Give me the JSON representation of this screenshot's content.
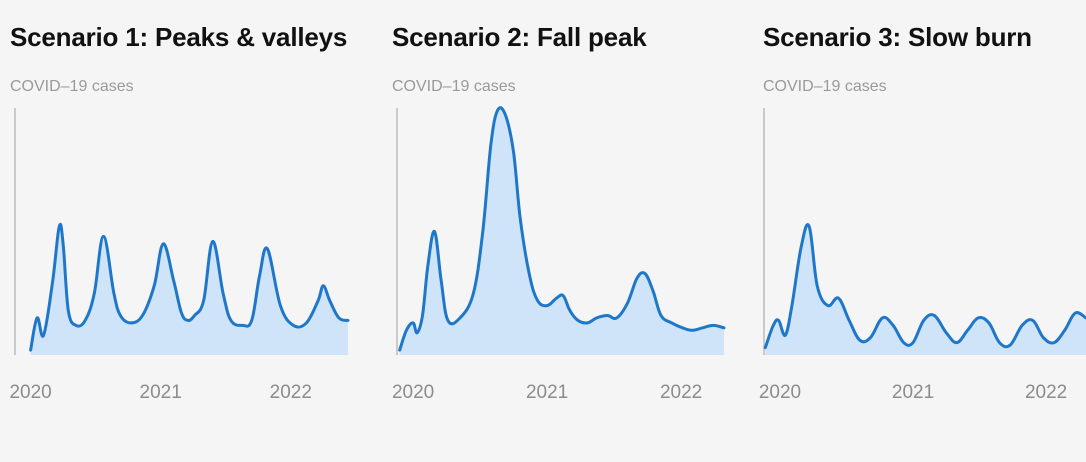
{
  "colors": {
    "background": "#f5f5f5",
    "line": "#1f77c9",
    "fill": "#cfe4f8",
    "axis": "#bbbbbb",
    "title": "#111111",
    "subtitle": "#9a9a9a",
    "tick": "#8c8c8c"
  },
  "chart_data": [
    {
      "type": "area",
      "title": "Scenario 1: Peaks & valleys",
      "ylabel": "COVID–19 cases",
      "xlabel": "",
      "x_ticks": [
        {
          "x": 2020.0,
          "label": "2020"
        },
        {
          "x": 2021.0,
          "label": "2021"
        },
        {
          "x": 2022.0,
          "label": "2022"
        }
      ],
      "xlim": [
        2020.0,
        2022.45
      ],
      "ylim": [
        0,
        100
      ],
      "grid": false,
      "x": [
        2020.0,
        2020.05,
        2020.1,
        2020.17,
        2020.22,
        2020.25,
        2020.29,
        2020.35,
        2020.42,
        2020.49,
        2020.56,
        2020.64,
        2020.69,
        2020.77,
        2020.86,
        2020.95,
        2021.02,
        2021.1,
        2021.16,
        2021.21,
        2021.26,
        2021.33,
        2021.4,
        2021.48,
        2021.54,
        2021.63,
        2021.7,
        2021.76,
        2021.82,
        2021.92,
        2022.02,
        2022.12,
        2022.21,
        2022.25,
        2022.3,
        2022.37,
        2022.44
      ],
      "values": [
        2,
        15,
        8,
        30,
        52,
        45,
        18,
        12,
        14,
        25,
        48,
        25,
        16,
        13,
        16,
        28,
        45,
        30,
        17,
        14,
        16,
        22,
        46,
        25,
        14,
        12,
        14,
        32,
        43,
        20,
        12,
        13,
        22,
        28,
        22,
        15,
        14
      ]
    },
    {
      "type": "area",
      "title": "Scenario 2: Fall peak",
      "ylabel": "COVID–19 cases",
      "xlabel": "",
      "x_ticks": [
        {
          "x": 2020.0,
          "label": "2020"
        },
        {
          "x": 2021.0,
          "label": "2021"
        },
        {
          "x": 2022.0,
          "label": "2022"
        }
      ],
      "xlim": [
        1999.86,
        2022.33
      ],
      "ylim": [
        0,
        100
      ],
      "grid": false,
      "x": [
        2019.9,
        2019.95,
        2020.0,
        2020.03,
        2020.07,
        2020.11,
        2020.16,
        2020.21,
        2020.26,
        2020.35,
        2020.45,
        2020.52,
        2020.58,
        2020.63,
        2020.69,
        2020.75,
        2020.8,
        2020.87,
        2020.93,
        2021.0,
        2021.07,
        2021.12,
        2021.17,
        2021.23,
        2021.3,
        2021.37,
        2021.45,
        2021.52,
        2021.6,
        2021.67,
        2021.73,
        2021.79,
        2021.85,
        2021.93,
        2022.01,
        2022.08,
        2022.16,
        2022.24,
        2022.32
      ],
      "values": [
        2,
        10,
        13,
        9,
        16,
        36,
        50,
        30,
        14,
        15,
        25,
        50,
        85,
        99,
        97,
        82,
        55,
        32,
        22,
        20,
        23,
        24,
        18,
        14,
        13,
        15,
        16,
        15,
        21,
        31,
        33,
        26,
        16,
        13,
        11,
        10,
        11,
        12,
        11
      ]
    },
    {
      "type": "area",
      "title": "Scenario 3: Slow burn",
      "ylabel": "COVID–19 cases",
      "xlabel": "",
      "x_ticks": [
        {
          "x": 2020.0,
          "label": "2020"
        },
        {
          "x": 2021.0,
          "label": "2021"
        },
        {
          "x": 2022.0,
          "label": "2022"
        }
      ],
      "xlim": [
        1999.9,
        2022.35
      ],
      "ylim": [
        0,
        100
      ],
      "grid": false,
      "x": [
        2019.89,
        2019.95,
        2019.99,
        2020.04,
        2020.09,
        2020.16,
        2020.22,
        2020.28,
        2020.36,
        2020.44,
        2020.52,
        2020.6,
        2020.68,
        2020.77,
        2020.85,
        2020.93,
        2021.0,
        2021.08,
        2021.16,
        2021.25,
        2021.33,
        2021.41,
        2021.49,
        2021.57,
        2021.65,
        2021.73,
        2021.82,
        2021.9,
        2021.98,
        2022.06,
        2022.14,
        2022.22,
        2022.3
      ],
      "values": [
        3,
        12,
        14,
        8,
        20,
        44,
        52,
        28,
        20,
        23,
        14,
        6,
        7,
        15,
        12,
        5,
        5,
        14,
        16,
        9,
        5,
        10,
        15,
        13,
        5,
        4,
        12,
        14,
        7,
        5,
        10,
        17,
        15
      ]
    }
  ]
}
